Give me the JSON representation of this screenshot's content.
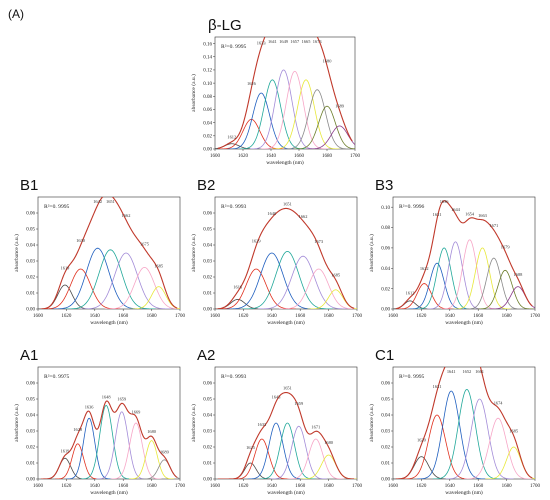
{
  "figure_label": "(A)",
  "colors": {
    "envelope": "#c0392b",
    "components": [
      "#4a4a4a",
      "#e0301e",
      "#1f5fbf",
      "#21a89a",
      "#a38cd8",
      "#f7a6c7",
      "#e8e83a",
      "#8a8a8a",
      "#6b7d2a",
      "#8a3a8a",
      "#7b5a2e",
      "#3aa3d8",
      "#9bd45a"
    ]
  },
  "chart_data": [
    {
      "type": "line",
      "panel": "β-LG",
      "r2": "R²=0. 9995",
      "xlabel": "wavelength (nm)",
      "ylabel": "absorbance (a.u.)",
      "xlim": [
        1600,
        1700
      ],
      "ylim": [
        0,
        0.17
      ],
      "xticks": [
        "1600",
        "1620",
        "1640",
        "1660",
        "1680",
        "1700"
      ],
      "yticks": [
        "0.00",
        "0.02",
        "0.04",
        "0.06",
        "0.08",
        "0.10",
        "0.12",
        "0.14",
        "0.16"
      ],
      "yticks_values": [
        0,
        0.02,
        0.04,
        0.06,
        0.08,
        0.1,
        0.12,
        0.14,
        0.16
      ],
      "peaks": [
        {
          "center": 1612,
          "height": 0.008,
          "width": 5,
          "label": "1612"
        },
        {
          "center": 1626,
          "height": 0.045,
          "width": 6,
          "label": "1626"
        },
        {
          "center": 1633,
          "height": 0.085,
          "width": 6,
          "label": "1633"
        },
        {
          "center": 1641,
          "height": 0.105,
          "width": 6,
          "label": "1641"
        },
        {
          "center": 1649,
          "height": 0.12,
          "width": 6,
          "label": "1649"
        },
        {
          "center": 1657,
          "height": 0.118,
          "width": 6,
          "label": "1657"
        },
        {
          "center": 1665,
          "height": 0.105,
          "width": 6,
          "label": "1665"
        },
        {
          "center": 1673,
          "height": 0.09,
          "width": 6,
          "label": "1673"
        },
        {
          "center": 1680,
          "height": 0.065,
          "width": 6,
          "label": "1680"
        },
        {
          "center": 1689,
          "height": 0.035,
          "width": 6,
          "label": "1689"
        }
      ]
    },
    {
      "type": "line",
      "panel": "B1",
      "r2": "R²=0. 9995",
      "xlabel": "wavelength (nm)",
      "ylabel": "absorbance (a.u.)",
      "xlim": [
        1600,
        1700
      ],
      "ylim": [
        0,
        0.07
      ],
      "xticks": [
        "1600",
        "1620",
        "1640",
        "1660",
        "1680",
        "1700"
      ],
      "yticks": [
        "0.00",
        "0.01",
        "0.02",
        "0.03",
        "0.04",
        "0.05",
        "0.06"
      ],
      "yticks_values": [
        0,
        0.01,
        0.02,
        0.03,
        0.04,
        0.05,
        0.06
      ],
      "peaks": [
        {
          "center": 1619,
          "height": 0.015,
          "width": 5,
          "label": "1619"
        },
        {
          "center": 1630,
          "height": 0.025,
          "width": 7,
          "label": "1630"
        },
        {
          "center": 1642,
          "height": 0.038,
          "width": 8,
          "label": "1642"
        },
        {
          "center": 1651,
          "height": 0.037,
          "width": 8,
          "label": "1651"
        },
        {
          "center": 1662,
          "height": 0.035,
          "width": 8,
          "label": "1662"
        },
        {
          "center": 1675,
          "height": 0.026,
          "width": 7,
          "label": "1675"
        },
        {
          "center": 1685,
          "height": 0.014,
          "width": 5,
          "label": "1685"
        }
      ]
    },
    {
      "type": "line",
      "panel": "B2",
      "r2": "R²=0. 9993",
      "xlabel": "wavelength (nm)",
      "ylabel": "absorbance (a.u.)",
      "xlim": [
        1600,
        1700
      ],
      "ylim": [
        0,
        0.07
      ],
      "xticks": [
        "1600",
        "1620",
        "1640",
        "1660",
        "1680",
        "1700"
      ],
      "yticks": [
        "0.00",
        "0.01",
        "0.02",
        "0.03",
        "0.04",
        "0.05",
        "0.06"
      ],
      "yticks_values": [
        0,
        0.01,
        0.02,
        0.03,
        0.04,
        0.05,
        0.06
      ],
      "peaks": [
        {
          "center": 1616,
          "height": 0.006,
          "width": 5,
          "label": "1616"
        },
        {
          "center": 1629,
          "height": 0.025,
          "width": 7,
          "label": "1629"
        },
        {
          "center": 1640,
          "height": 0.035,
          "width": 8,
          "label": "1640"
        },
        {
          "center": 1651,
          "height": 0.036,
          "width": 8,
          "label": "1651"
        },
        {
          "center": 1662,
          "height": 0.033,
          "width": 8,
          "label": "1662"
        },
        {
          "center": 1673,
          "height": 0.025,
          "width": 7,
          "label": "1673"
        },
        {
          "center": 1685,
          "height": 0.012,
          "width": 5,
          "label": "1685"
        }
      ]
    },
    {
      "type": "line",
      "panel": "B3",
      "r2": "R²=0. 9996",
      "xlabel": "wavelength (nm)",
      "ylabel": "absorbance (a.u.)",
      "xlim": [
        1600,
        1700
      ],
      "ylim": [
        0,
        0.11
      ],
      "xticks": [
        "1600",
        "1620",
        "1640",
        "1660",
        "1680",
        "1700"
      ],
      "yticks": [
        "0.00",
        "0.02",
        "0.04",
        "0.06",
        "0.08",
        "0.10"
      ],
      "yticks_values": [
        0,
        0.02,
        0.04,
        0.06,
        0.08,
        0.1
      ],
      "peaks": [
        {
          "center": 1612,
          "height": 0.008,
          "width": 4,
          "label": "1612"
        },
        {
          "center": 1622,
          "height": 0.025,
          "width": 5,
          "label": "1622"
        },
        {
          "center": 1631,
          "height": 0.045,
          "width": 5,
          "label": "1631"
        },
        {
          "center": 1636,
          "height": 0.06,
          "width": 5,
          "label": "1636"
        },
        {
          "center": 1644,
          "height": 0.066,
          "width": 5,
          "label": "1644"
        },
        {
          "center": 1654,
          "height": 0.068,
          "width": 5,
          "label": "1654"
        },
        {
          "center": 1663,
          "height": 0.06,
          "width": 5,
          "label": "1663"
        },
        {
          "center": 1671,
          "height": 0.05,
          "width": 5,
          "label": "1671"
        },
        {
          "center": 1679,
          "height": 0.038,
          "width": 5,
          "label": "1679"
        },
        {
          "center": 1688,
          "height": 0.022,
          "width": 5,
          "label": "1688"
        }
      ]
    },
    {
      "type": "line",
      "panel": "A1",
      "r2": "R²=0. 9975",
      "xlabel": "wavelength (nm)",
      "ylabel": "absorbance (a.u.)",
      "xlim": [
        1600,
        1700
      ],
      "ylim": [
        0,
        0.07
      ],
      "xticks": [
        "1600",
        "1620",
        "1640",
        "1660",
        "1680",
        "1700"
      ],
      "yticks": [
        "0.00",
        "0.01",
        "0.02",
        "0.03",
        "0.04",
        "0.05",
        "0.06"
      ],
      "yticks_values": [
        0,
        0.01,
        0.02,
        0.03,
        0.04,
        0.05,
        0.06
      ],
      "peaks": [
        {
          "center": 1619,
          "height": 0.013,
          "width": 4,
          "label": "1619"
        },
        {
          "center": 1628,
          "height": 0.022,
          "width": 4,
          "label": "1628"
        },
        {
          "center": 1636,
          "height": 0.038,
          "width": 4,
          "label": "1636"
        },
        {
          "center": 1648,
          "height": 0.046,
          "width": 4.5,
          "label": "1648"
        },
        {
          "center": 1659,
          "height": 0.042,
          "width": 4.5,
          "label": "1659"
        },
        {
          "center": 1669,
          "height": 0.035,
          "width": 4.5,
          "label": "1669"
        },
        {
          "center": 1680,
          "height": 0.024,
          "width": 4,
          "label": "1680"
        },
        {
          "center": 1689,
          "height": 0.012,
          "width": 4,
          "label": "1689"
        }
      ]
    },
    {
      "type": "line",
      "panel": "A2",
      "r2": "R²=0. 9993",
      "xlabel": "wavelength (nm)",
      "ylabel": "absorbance (a.u.)",
      "xlim": [
        1600,
        1700
      ],
      "ylim": [
        0,
        0.07
      ],
      "xticks": [
        "1600",
        "1620",
        "1640",
        "1660",
        "1680",
        "1700"
      ],
      "yticks": [
        "0.00",
        "0.01",
        "0.02",
        "0.03",
        "0.04",
        "0.05",
        "0.06"
      ],
      "yticks_values": [
        0,
        0.01,
        0.02,
        0.03,
        0.04,
        0.05,
        0.06
      ],
      "peaks": [
        {
          "center": 1625,
          "height": 0.01,
          "width": 4,
          "label": "1625"
        },
        {
          "center": 1633,
          "height": 0.025,
          "width": 5,
          "label": "1633"
        },
        {
          "center": 1643,
          "height": 0.035,
          "width": 5,
          "label": "1643"
        },
        {
          "center": 1651,
          "height": 0.035,
          "width": 5,
          "label": "1651"
        },
        {
          "center": 1659,
          "height": 0.033,
          "width": 5,
          "label": "1659"
        },
        {
          "center": 1671,
          "height": 0.025,
          "width": 5,
          "label": "1671"
        },
        {
          "center": 1680,
          "height": 0.015,
          "width": 5,
          "label": "1680"
        }
      ]
    },
    {
      "type": "line",
      "panel": "C1",
      "r2": "R²=0. 9995",
      "xlabel": "wavelength (nm)",
      "ylabel": "absorbance (a.u.)",
      "xlim": [
        1600,
        1700
      ],
      "ylim": [
        0,
        0.07
      ],
      "xticks": [
        "1600",
        "1620",
        "1640",
        "1660",
        "1680",
        "1700"
      ],
      "yticks": [
        "0.00",
        "0.01",
        "0.02",
        "0.03",
        "0.04",
        "0.05",
        "0.06"
      ],
      "yticks_values": [
        0,
        0.01,
        0.02,
        0.03,
        0.04,
        0.05,
        0.06
      ],
      "peaks": [
        {
          "center": 1620,
          "height": 0.014,
          "width": 5,
          "label": "1620"
        },
        {
          "center": 1631,
          "height": 0.04,
          "width": 6,
          "label": "1631"
        },
        {
          "center": 1641,
          "height": 0.055,
          "width": 6,
          "label": "1641"
        },
        {
          "center": 1652,
          "height": 0.056,
          "width": 6,
          "label": "1652"
        },
        {
          "center": 1661,
          "height": 0.05,
          "width": 6,
          "label": "1661"
        },
        {
          "center": 1674,
          "height": 0.038,
          "width": 6,
          "label": "1674"
        },
        {
          "center": 1685,
          "height": 0.02,
          "width": 5,
          "label": "1685"
        }
      ]
    }
  ]
}
